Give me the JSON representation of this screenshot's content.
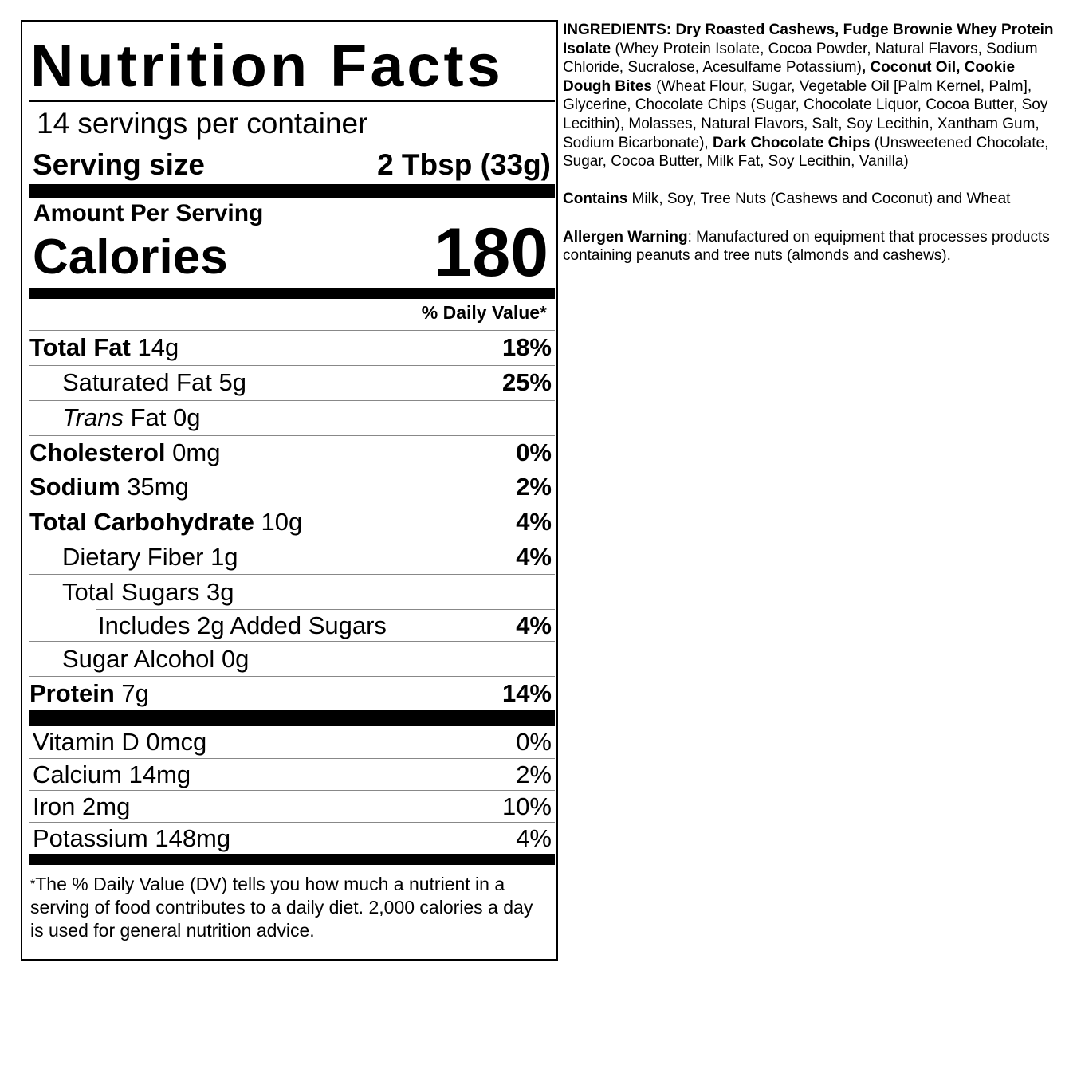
{
  "label": {
    "title": "Nutrition Facts",
    "servings_per_container": "14 servings per container",
    "serving_size_label": "Serving size",
    "serving_size_value": "2 Tbsp (33g)",
    "amount_per_serving": "Amount Per Serving",
    "calories_label": "Calories",
    "calories_value": "180",
    "daily_value_header": "% Daily Value*",
    "nutrients": [
      {
        "name": "Total Fat",
        "amount": "14g",
        "dv": "18%"
      },
      {
        "name": "Saturated Fat",
        "amount": "5g",
        "dv": "25%"
      },
      {
        "name": "Trans",
        "amount": "Fat 0g",
        "dv": ""
      },
      {
        "name": "Cholesterol",
        "amount": "0mg",
        "dv": "0%"
      },
      {
        "name": "Sodium",
        "amount": "35mg",
        "dv": "2%"
      },
      {
        "name": "Total Carbohydrate",
        "amount": "10g",
        "dv": "4%"
      },
      {
        "name": "Dietary Fiber",
        "amount": "1g",
        "dv": "4%"
      },
      {
        "name": "Total Sugars",
        "amount": "3g",
        "dv": ""
      },
      {
        "name": "Includes 2g Added Sugars",
        "amount": "",
        "dv": "4%"
      },
      {
        "name": "Sugar Alcohol",
        "amount": "0g",
        "dv": ""
      },
      {
        "name": "Protein",
        "amount": "7g",
        "dv": "14%"
      }
    ],
    "vitamins": [
      {
        "name": "Vitamin D 0mcg",
        "dv": "0%"
      },
      {
        "name": "Calcium 14mg",
        "dv": "2%"
      },
      {
        "name": "Iron 2mg",
        "dv": "10%"
      },
      {
        "name": "Potassium 148mg",
        "dv": "4%"
      }
    ],
    "footnote_star": "*",
    "footnote": "The % Daily Value (DV) tells you how much a nutrient in a serving of food contributes to a daily diet. 2,000 calories a day is used for general nutrition advice."
  },
  "ingredients": {
    "segments": [
      {
        "text": "INGREDIENTS: Dry Roasted Cashews, Fudge Brownie Whey Protein Isolate",
        "bold": true
      },
      {
        "text": " (Whey Protein Isolate, Cocoa Powder, Natural Flavors, Sodium Chloride, Sucralose, Acesulfame Potassium)",
        "bold": false
      },
      {
        "text": ", Coconut Oil, Cookie Dough Bites",
        "bold": true
      },
      {
        "text": " (Wheat Flour, Sugar, Vegetable Oil [Palm Kernel, Palm], Glycerine, Chocolate Chips (Sugar, Chocolate Liquor, Cocoa Butter, Soy Lecithin), Molasses, Natural Flavors, Salt, Soy Lecithin, Xantham Gum, Sodium Bicarbonate), ",
        "bold": false
      },
      {
        "text": "Dark Chocolate Chips",
        "bold": true
      },
      {
        "text": " (Unsweetened Chocolate, Sugar, Cocoa Butter, Milk Fat, Soy Lecithin, Vanilla)",
        "bold": false
      }
    ],
    "contains_label": "Contains",
    "contains_text": " Milk, Soy, Tree Nuts (Cashews and Coconut) and Wheat",
    "allergen_label": "Allergen Warning",
    "allergen_text": ": Manufactured on equipment that processes products containing peanuts and tree nuts (almonds and cashews)."
  }
}
